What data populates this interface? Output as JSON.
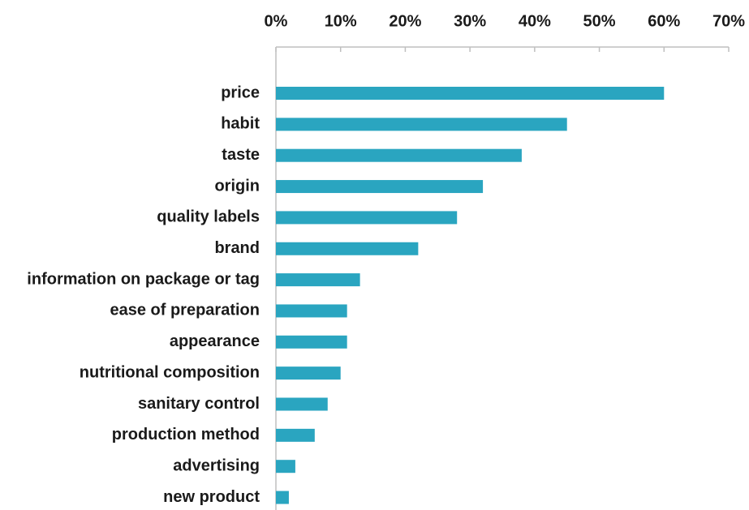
{
  "chart_data": {
    "type": "bar",
    "orientation": "horizontal",
    "title": "",
    "xlabel": "",
    "ylabel": "",
    "xlim": [
      0,
      70
    ],
    "x_ticks": [
      "0%",
      "10%",
      "20%",
      "30%",
      "40%",
      "50%",
      "60%",
      "70%"
    ],
    "x_axis_position": "top",
    "grid": false,
    "bar_color": "#2aa5c0",
    "categories": [
      "price",
      "habit",
      "taste",
      "origin",
      "quality labels",
      "brand",
      "information on package or tag",
      "ease of preparation",
      "appearance",
      "nutritional composition",
      "sanitary control",
      "production method",
      "advertising",
      "new product"
    ],
    "values": [
      60,
      45,
      38,
      32,
      28,
      22,
      13,
      11,
      11,
      10,
      8,
      6,
      3,
      2
    ]
  }
}
